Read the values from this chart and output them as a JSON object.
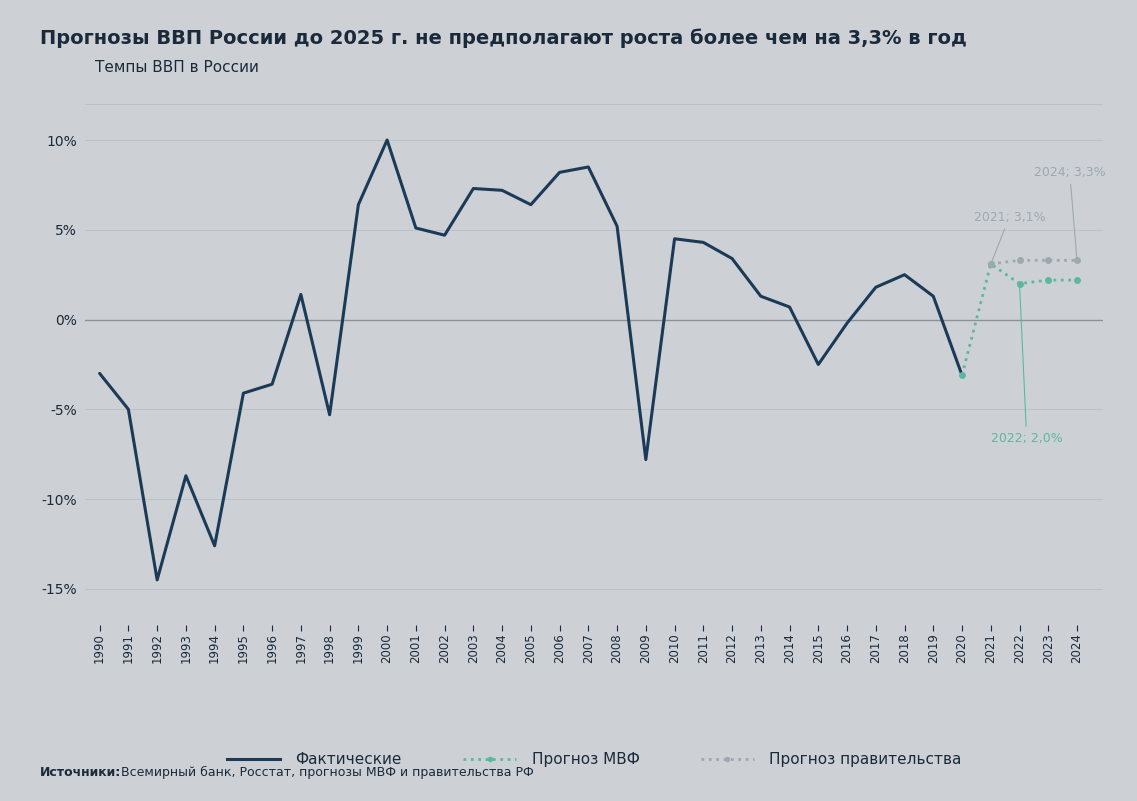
{
  "title": "Прогнозы ВВП России до 2025 г. не предполагают роста более чем на 3,3% в год",
  "subtitle": "Темпы ВВП в России",
  "source_bold": "Источники:",
  "source_rest": " Всемирный банк, Росстат, прогнозы МВФ и правительства РФ",
  "background_color": "#cdd1d6",
  "actual_color": "#1b3a57",
  "imf_color": "#5bb8a0",
  "gov_color": "#9da8b0",
  "actual_years": [
    1990,
    1991,
    1992,
    1993,
    1994,
    1995,
    1996,
    1997,
    1998,
    1999,
    2000,
    2001,
    2002,
    2003,
    2004,
    2005,
    2006,
    2007,
    2008,
    2009,
    2010,
    2011,
    2012,
    2013,
    2014,
    2015,
    2016,
    2017,
    2018,
    2019,
    2020
  ],
  "actual_values": [
    -3.0,
    -5.0,
    -14.5,
    -8.7,
    -12.6,
    -4.1,
    -3.6,
    1.4,
    -5.3,
    6.4,
    10.0,
    5.1,
    4.7,
    7.3,
    7.2,
    6.4,
    8.2,
    8.5,
    5.2,
    -7.8,
    4.5,
    4.3,
    3.4,
    1.3,
    0.7,
    -2.5,
    -0.2,
    1.8,
    2.5,
    1.3,
    -3.1
  ],
  "imf_years": [
    2020,
    2021,
    2022,
    2023,
    2024
  ],
  "imf_values": [
    -3.1,
    3.1,
    2.0,
    2.2,
    2.2
  ],
  "gov_years": [
    2021,
    2022,
    2023,
    2024
  ],
  "gov_values": [
    3.1,
    3.3,
    3.3,
    3.3
  ],
  "ann_2021_text": "2021; 3,1%",
  "ann_2024_text": "2024; 3,3%",
  "ann_2022_text": "2022; 2,0%",
  "legend_actual": "Фактические",
  "legend_imf": "Прогноз МВФ",
  "legend_gov": "Прогноз правительства",
  "ylim": [
    -17,
    12
  ],
  "yticks": [
    -15,
    -10,
    -5,
    0,
    5,
    10
  ],
  "grid_color": "#b8bec4",
  "zero_line_color": "#8a9298",
  "title_fontsize": 14,
  "subtitle_fontsize": 11
}
